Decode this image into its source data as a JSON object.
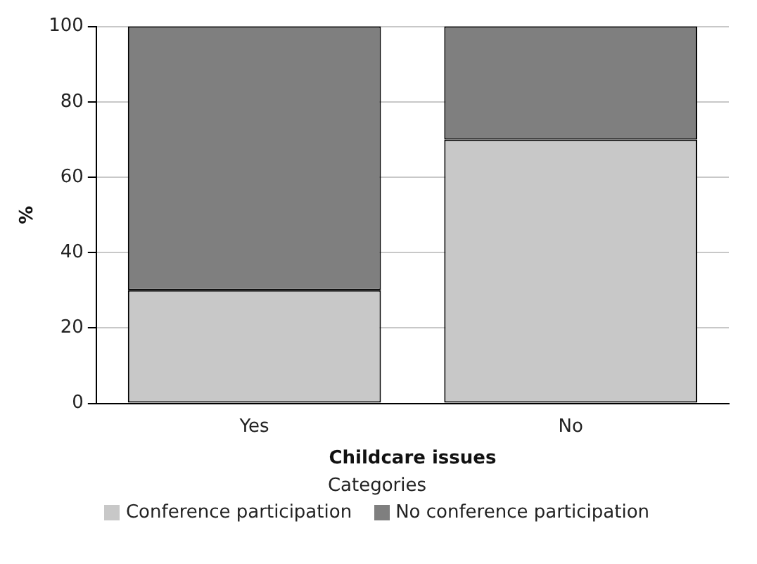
{
  "chart_data": {
    "type": "bar",
    "xlabel": "Childcare issues",
    "ylabel": "%",
    "legend_title": "Categories",
    "categories": [
      "Yes",
      "No"
    ],
    "stacked": true,
    "series": [
      {
        "name": "Conference participation",
        "color": "#c8c8c8",
        "values": [
          30,
          70
        ]
      },
      {
        "name": "No conference participation",
        "color": "#7f7f7f",
        "values": [
          70,
          30
        ]
      }
    ],
    "ylim": [
      0,
      100
    ],
    "yticks": [
      0,
      20,
      40,
      60,
      80,
      100
    ],
    "grid": "y",
    "legend": "bottom"
  }
}
